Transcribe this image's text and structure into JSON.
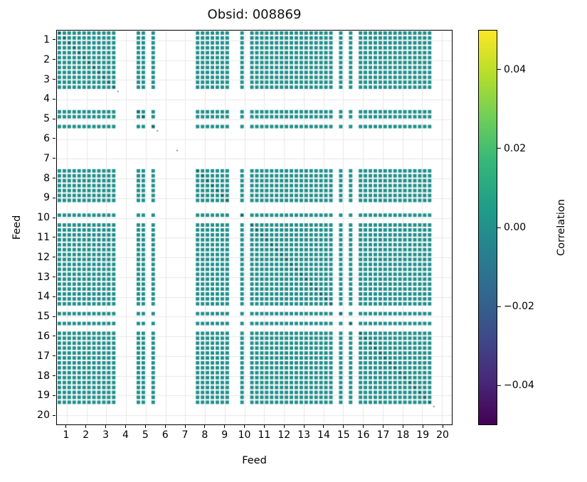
{
  "title": "Obsid: 008869",
  "axes": {
    "xlabel": "Feed",
    "ylabel": "Feed",
    "xticks": [
      "1",
      "2",
      "3",
      "4",
      "5",
      "6",
      "7",
      "8",
      "9",
      "10",
      "11",
      "12",
      "13",
      "14",
      "15",
      "16",
      "17",
      "18",
      "19",
      "20"
    ],
    "yticks": [
      "1",
      "2",
      "3",
      "4",
      "5",
      "6",
      "7",
      "8",
      "9",
      "10",
      "11",
      "12",
      "13",
      "14",
      "15",
      "16",
      "17",
      "18",
      "19",
      "20"
    ]
  },
  "colorbar": {
    "label": "Correlation",
    "ticks": [
      "0.04",
      "0.02",
      "0.00",
      "−0.02",
      "−0.04"
    ],
    "tick_values": [
      0.04,
      0.02,
      0.0,
      -0.02,
      -0.04
    ],
    "vmin": -0.05,
    "vmax": 0.05,
    "viridis_stops": [
      "#440154",
      "#482878",
      "#3e4a89",
      "#31688e",
      "#26828e",
      "#1f9e89",
      "#35b779",
      "#6ece58",
      "#b5de2b",
      "#fde725"
    ]
  },
  "chart_data": {
    "type": "heatmap",
    "title": "Obsid: 008869",
    "xlabel": "Feed",
    "ylabel": "Feed",
    "colorbar_label": "Correlation",
    "colorbar_range": [
      -0.05,
      0.05
    ],
    "n_feeds": 20,
    "subchannels_per_feed": 4,
    "active_feeds": [
      1,
      2,
      3,
      5,
      8,
      9,
      10,
      11,
      12,
      13,
      14,
      15,
      16,
      17,
      18,
      19
    ],
    "inactive_feeds": [
      4,
      6,
      7,
      20
    ],
    "masked_subchannels": [
      18,
      35,
      36,
      38,
      56,
      58,
      60
    ],
    "off_diagonal_value": 0.0,
    "diagonal_note": "small dark marks along the matrix diagonal",
    "cell_color": "#21908c",
    "diagonal_color": "#36474f",
    "grid_color": "#e7e7e7"
  }
}
